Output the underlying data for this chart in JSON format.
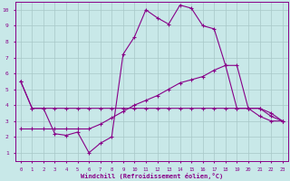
{
  "background_color": "#c8e8e8",
  "grid_color": "#a8c8c8",
  "line_color": "#880088",
  "marker": "+",
  "xlabel": "Windchill (Refroidissement éolien,°C)",
  "xlabel_color": "#880088",
  "tick_color": "#880088",
  "xlim": [
    -0.5,
    23.5
  ],
  "ylim": [
    0.5,
    10.5
  ],
  "yticks": [
    1,
    2,
    3,
    4,
    5,
    6,
    7,
    8,
    9,
    10
  ],
  "xticks": [
    0,
    1,
    2,
    3,
    4,
    5,
    6,
    7,
    8,
    9,
    10,
    11,
    12,
    13,
    14,
    15,
    16,
    17,
    18,
    19,
    20,
    21,
    22,
    23
  ],
  "line1_x": [
    0,
    1,
    2,
    3,
    4,
    5,
    6,
    7,
    8,
    9,
    10,
    11,
    12,
    13,
    14,
    15,
    16,
    17,
    18,
    19,
    20,
    21,
    22,
    23
  ],
  "line1_y": [
    5.5,
    3.8,
    3.8,
    3.8,
    3.8,
    3.8,
    3.8,
    3.8,
    3.8,
    3.8,
    3.8,
    3.8,
    3.8,
    3.8,
    3.8,
    3.8,
    3.8,
    3.8,
    3.8,
    3.8,
    3.8,
    3.8,
    3.3,
    3.0
  ],
  "line2_x": [
    0,
    1,
    2,
    3,
    4,
    5,
    6,
    7,
    8,
    9,
    10,
    11,
    12,
    13,
    14,
    15,
    16,
    17,
    18,
    19,
    20,
    21,
    22,
    23
  ],
  "line2_y": [
    5.5,
    3.8,
    3.8,
    2.2,
    2.1,
    2.3,
    1.0,
    1.6,
    2.0,
    7.2,
    8.3,
    10.0,
    9.5,
    9.1,
    10.3,
    10.1,
    9.0,
    8.8,
    6.5,
    3.8,
    3.8,
    3.3,
    3.0,
    3.0
  ],
  "line3_x": [
    0,
    1,
    2,
    3,
    4,
    5,
    6,
    7,
    8,
    9,
    10,
    11,
    12,
    13,
    14,
    15,
    16,
    17,
    18,
    19,
    20,
    21,
    22,
    23
  ],
  "line3_y": [
    2.5,
    2.5,
    2.5,
    2.5,
    2.5,
    2.5,
    2.5,
    2.8,
    3.2,
    3.6,
    4.0,
    4.3,
    4.6,
    5.0,
    5.4,
    5.6,
    5.8,
    6.2,
    6.5,
    6.5,
    3.8,
    3.8,
    3.5,
    3.0
  ]
}
